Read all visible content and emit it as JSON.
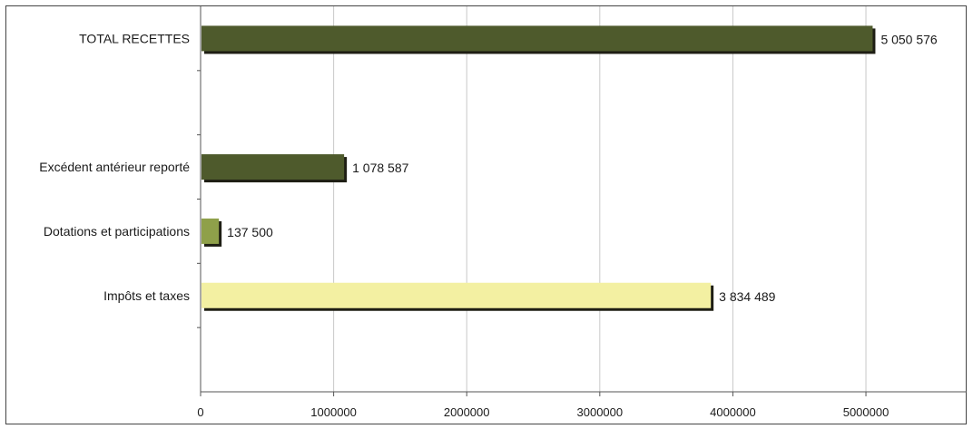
{
  "chart_data": {
    "type": "bar",
    "orientation": "horizontal",
    "title": "",
    "xlabel": "",
    "ylabel": "",
    "categories": [
      "TOTAL RECETTES",
      "",
      "Excédent antérieur reporté",
      "Dotations et participations",
      "Impôts et taxes",
      ""
    ],
    "values": [
      5050576,
      null,
      1078587,
      137500,
      3834489,
      null
    ],
    "value_labels": [
      "5 050 576",
      "",
      "1 078 587",
      "137 500",
      "3 834 489",
      ""
    ],
    "colors": [
      "#4e5a2c",
      null,
      "#4e5a2c",
      "#8fa04a",
      "#f3f0a2",
      null
    ],
    "xlim": [
      0,
      5700000
    ],
    "x_ticks": [
      0,
      1000000,
      2000000,
      3000000,
      4000000,
      5000000
    ],
    "x_tick_labels": [
      "0",
      "1000000",
      "2000000",
      "3000000",
      "4000000",
      "5000000"
    ],
    "grid": "vertical",
    "legend": "none"
  }
}
